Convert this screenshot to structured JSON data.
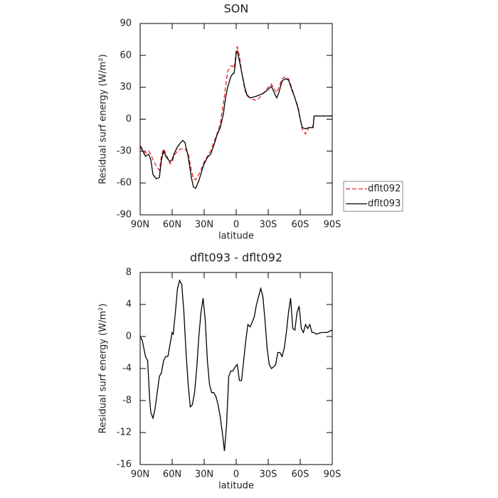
{
  "chart_data": [
    {
      "type": "line",
      "title": "SON",
      "xlabel": "latitude",
      "ylabel": "Residual surf energy (W/m²)",
      "x": [
        90,
        85,
        82,
        80,
        78,
        75,
        72,
        70,
        68,
        66,
        62,
        60,
        58,
        55,
        52,
        50,
        48,
        45,
        42,
        40,
        38,
        35,
        32,
        30,
        27,
        24,
        21,
        18,
        15,
        12,
        10,
        8,
        5,
        3,
        2,
        1,
        0,
        -1,
        -3,
        -5,
        -8,
        -10,
        -13,
        -17,
        -20,
        -25,
        -30,
        -33,
        -36,
        -38,
        -40,
        -43,
        -46,
        -49,
        -52,
        -55,
        -58,
        -60,
        -62,
        -65,
        -68,
        -70,
        -72,
        -73,
        -80,
        -90
      ],
      "series": [
        {
          "name": "dflt092",
          "color": "#e8262b",
          "style": "dashed",
          "values": [
            -25,
            -32,
            -30,
            -33,
            -38,
            -44,
            -48,
            -34,
            -28,
            -32,
            -42,
            -40,
            -34,
            -30,
            -28,
            -28,
            -28,
            -32,
            -48,
            -56,
            -57,
            -52,
            -45,
            -40,
            -35,
            -30,
            -22,
            -14,
            -5,
            15,
            30,
            45,
            50,
            50,
            48,
            55,
            66,
            68,
            60,
            45,
            28,
            22,
            20,
            18,
            18,
            24,
            30,
            33,
            28,
            25,
            30,
            38,
            40,
            38,
            30,
            20,
            12,
            0,
            -10,
            -14,
            -8,
            -7,
            -7,
            3,
            3,
            3
          ]
        },
        {
          "name": "dflt093",
          "color": "#000000",
          "style": "solid",
          "values": [
            -25,
            -35,
            -33,
            -38,
            -52,
            -56,
            -55,
            -38,
            -30,
            -35,
            -40,
            -38,
            -32,
            -26,
            -22,
            -20,
            -22,
            -35,
            -55,
            -64,
            -65,
            -58,
            -48,
            -42,
            -36,
            -33,
            -25,
            -15,
            -8,
            5,
            20,
            30,
            40,
            43,
            43,
            50,
            62,
            64,
            55,
            45,
            30,
            23,
            20,
            21,
            22,
            24,
            28,
            31,
            24,
            20,
            25,
            36,
            38,
            37,
            28,
            20,
            10,
            0,
            -8,
            -9,
            -8,
            -8,
            -8,
            3,
            3,
            3
          ]
        }
      ],
      "xlim": [
        90,
        -90
      ],
      "xticks": [
        {
          "value": 90,
          "label": "90N"
        },
        {
          "value": 60,
          "label": "60N"
        },
        {
          "value": 30,
          "label": "30N"
        },
        0,
        {
          "value": -30,
          "label": "30S"
        },
        {
          "value": -60,
          "label": "60S"
        },
        {
          "value": -90,
          "label": "90S"
        }
      ],
      "ylim": [
        -90,
        90
      ],
      "yticks": [
        -90,
        -60,
        -30,
        0,
        30,
        60,
        90
      ],
      "legend": "outside-right"
    },
    {
      "type": "line",
      "title": "dflt093 - dflt092",
      "xlabel": "latitude",
      "ylabel": "Residual surf energy (W/m²)",
      "x": [
        90,
        88,
        85,
        83,
        81,
        80,
        78,
        76,
        74,
        72,
        70,
        68,
        66,
        64,
        62,
        60,
        59,
        57,
        55,
        53,
        51,
        49,
        47,
        45,
        43,
        41,
        39,
        37,
        35,
        33,
        31,
        29,
        27,
        25,
        23,
        21,
        19,
        17,
        15,
        13,
        11,
        9,
        7,
        5,
        3,
        1,
        -1,
        -3,
        -5,
        -7,
        -9,
        -11,
        -13,
        -15,
        -17,
        -19,
        -21,
        -23,
        -25,
        -27,
        -29,
        -31,
        -33,
        -35,
        -37,
        -39,
        -41,
        -43,
        -45,
        -47,
        -49,
        -51,
        -53,
        -55,
        -57,
        -59,
        -61,
        -63,
        -65,
        -67,
        -69,
        -71,
        -73,
        -75,
        -80,
        -85,
        -90
      ],
      "series": [
        {
          "color": "#000000",
          "style": "solid",
          "values": [
            0,
            -0.5,
            -2.5,
            -3,
            -8,
            -9.5,
            -10.2,
            -9,
            -7,
            -5,
            -4.5,
            -3,
            -2.5,
            -2.5,
            -1,
            0.5,
            0.3,
            3,
            6,
            7,
            6.5,
            3,
            -2,
            -6,
            -8.8,
            -8.5,
            -7,
            -4,
            0,
            3,
            4.8,
            2,
            -3,
            -6,
            -7,
            -7,
            -7.5,
            -8.5,
            -10,
            -12,
            -14.3,
            -11,
            -5,
            -4.3,
            -4.3,
            -3.8,
            -3.5,
            -5.5,
            -5.5,
            -3,
            -0.5,
            1.5,
            1.2,
            1.8,
            2.5,
            4,
            5,
            6,
            5,
            2,
            -1.5,
            -3.5,
            -4,
            -3.8,
            -3.5,
            -2,
            -2,
            -2.5,
            -1.5,
            0.5,
            3,
            4.8,
            1,
            0.8,
            3,
            3.8,
            1,
            0.5,
            1.5,
            1,
            1.5,
            0.5,
            0.5,
            0.3,
            0.5,
            0.5,
            0.8
          ]
        }
      ],
      "xlim": [
        90,
        -90
      ],
      "xticks": [
        {
          "value": 90,
          "label": "90N"
        },
        {
          "value": 60,
          "label": "60N"
        },
        {
          "value": 30,
          "label": "30N"
        },
        0,
        {
          "value": -30,
          "label": "30S"
        },
        {
          "value": -60,
          "label": "60S"
        },
        {
          "value": -90,
          "label": "90S"
        }
      ],
      "ylim": [
        -16,
        8
      ],
      "yticks": [
        -16,
        -12,
        -8,
        -4,
        0,
        4,
        8
      ]
    }
  ]
}
